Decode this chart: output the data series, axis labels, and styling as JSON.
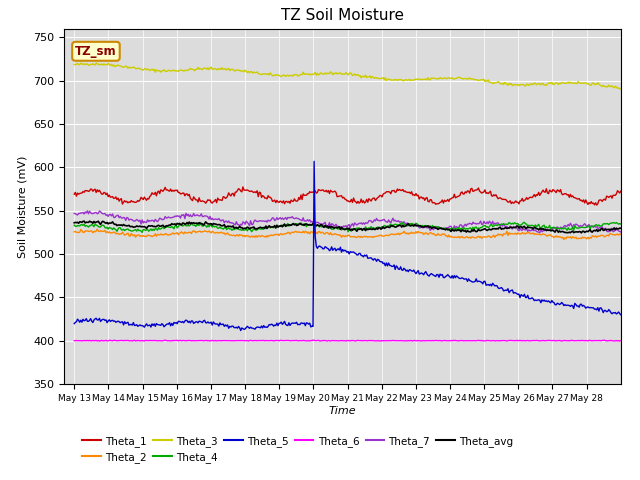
{
  "title": "TZ Soil Moisture",
  "xlabel": "Time",
  "ylabel": "Soil Moisture (mV)",
  "ylim": [
    350,
    760
  ],
  "yticks": [
    350,
    400,
    450,
    500,
    550,
    600,
    650,
    700,
    750
  ],
  "annotation_label": "TZ_sm",
  "bg_color": "#dcdcdc",
  "colors": {
    "Theta_1": "#cc0000",
    "Theta_2": "#ff8800",
    "Theta_3": "#cccc00",
    "Theta_4": "#00aa00",
    "Theta_5": "#0000cc",
    "Theta_6": "#ff00ff",
    "Theta_7": "#9933cc",
    "Theta_avg": "#000000"
  },
  "n_points": 500,
  "theta6_flat_val": 400,
  "legend_order": [
    "Theta_1",
    "Theta_2",
    "Theta_3",
    "Theta_4",
    "Theta_5",
    "Theta_6",
    "Theta_7",
    "Theta_avg"
  ]
}
